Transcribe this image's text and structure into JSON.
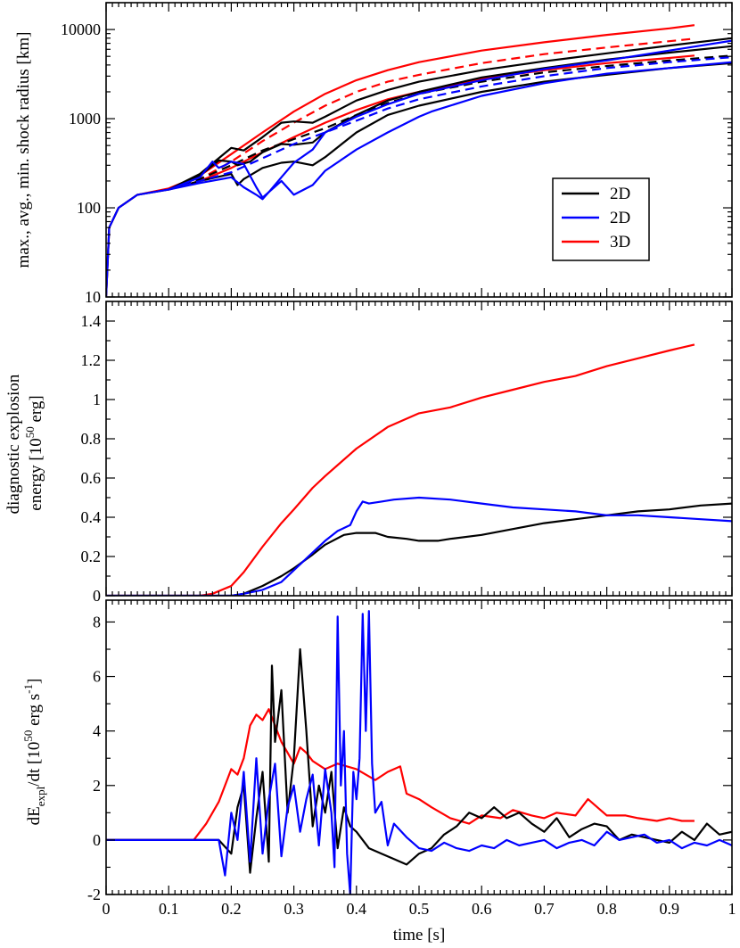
{
  "chart_data": [
    {
      "type": "line",
      "panel": "top",
      "ylabel": "max., avg., min. shock radius [km]",
      "yscale": "log",
      "xlim": [
        0,
        1
      ],
      "ylim": [
        10,
        20000
      ],
      "y_ticks": [
        10,
        100,
        1000,
        10000
      ],
      "y_tick_labels": [
        "10",
        "100",
        "1000",
        "10000"
      ],
      "legend": {
        "position": "right-middle",
        "entries": [
          {
            "label": "2D",
            "color": "#000000"
          },
          {
            "label": "2D",
            "color": "#0000ff"
          },
          {
            "label": "3D",
            "color": "#ff0000"
          }
        ]
      },
      "series": [
        {
          "color": "#ff0000",
          "dash": "solid",
          "x": [
            0,
            0.005,
            0.02,
            0.05,
            0.1,
            0.15,
            0.2,
            0.25,
            0.3,
            0.35,
            0.4,
            0.45,
            0.5,
            0.6,
            0.7,
            0.8,
            0.9,
            0.94
          ],
          "y": [
            10,
            60,
            100,
            140,
            165,
            230,
            400,
            700,
            1200,
            1900,
            2700,
            3500,
            4300,
            5800,
            7200,
            8700,
            10300,
            11200
          ]
        },
        {
          "color": "#ff0000",
          "dash": "dashed",
          "x": [
            0.1,
            0.15,
            0.2,
            0.25,
            0.3,
            0.35,
            0.4,
            0.45,
            0.5,
            0.6,
            0.7,
            0.8,
            0.9,
            0.94
          ],
          "y": [
            160,
            210,
            330,
            560,
            900,
            1400,
            2000,
            2600,
            3100,
            4200,
            5300,
            6300,
            7400,
            7900
          ]
        },
        {
          "color": "#ff0000",
          "dash": "solid",
          "x": [
            0.1,
            0.15,
            0.2,
            0.25,
            0.3,
            0.35,
            0.4,
            0.45,
            0.5,
            0.6,
            0.7,
            0.8,
            0.9,
            0.94
          ],
          "y": [
            160,
            200,
            280,
            420,
            620,
            900,
            1250,
            1650,
            2000,
            2800,
            3500,
            4200,
            4800,
            5100
          ]
        },
        {
          "color": "#000000",
          "dash": "solid",
          "x": [
            0,
            0.005,
            0.02,
            0.05,
            0.1,
            0.15,
            0.18,
            0.2,
            0.22,
            0.25,
            0.28,
            0.3,
            0.33,
            0.35,
            0.4,
            0.45,
            0.5,
            0.6,
            0.7,
            0.8,
            0.9,
            1.0
          ],
          "y": [
            10,
            60,
            100,
            140,
            160,
            240,
            360,
            470,
            440,
            620,
            900,
            930,
            900,
            1050,
            1600,
            2100,
            2600,
            3500,
            4400,
            5400,
            6600,
            8000
          ]
        },
        {
          "color": "#000000",
          "dash": "solid",
          "x": [
            0.1,
            0.15,
            0.18,
            0.2,
            0.21,
            0.23,
            0.25,
            0.28,
            0.3,
            0.33,
            0.35,
            0.4,
            0.45,
            0.5,
            0.6,
            0.7,
            0.8,
            0.9,
            1.0
          ],
          "y": [
            160,
            230,
            340,
            330,
            300,
            330,
            420,
            520,
            510,
            540,
            700,
            1100,
            1600,
            2000,
            2900,
            3700,
            4600,
            5500,
            6500
          ]
        },
        {
          "color": "#000000",
          "dash": "dashed",
          "x": [
            0.1,
            0.15,
            0.2,
            0.25,
            0.3,
            0.35,
            0.4,
            0.45,
            0.5,
            0.6,
            0.7,
            0.8,
            0.9,
            1.0
          ],
          "y": [
            160,
            210,
            300,
            440,
            590,
            780,
            1100,
            1500,
            1900,
            2600,
            3300,
            3900,
            4500,
            5100
          ]
        },
        {
          "color": "#000000",
          "dash": "solid",
          "x": [
            0.1,
            0.15,
            0.2,
            0.21,
            0.22,
            0.25,
            0.28,
            0.3,
            0.33,
            0.35,
            0.4,
            0.45,
            0.5,
            0.6,
            0.7,
            0.8,
            0.9,
            1.0
          ],
          "y": [
            160,
            200,
            240,
            180,
            210,
            280,
            320,
            330,
            300,
            370,
            700,
            1100,
            1400,
            2000,
            2600,
            3100,
            3700,
            4200
          ]
        },
        {
          "color": "#0000ff",
          "dash": "solid",
          "x": [
            0,
            0.005,
            0.02,
            0.05,
            0.1,
            0.15,
            0.17,
            0.18,
            0.19,
            0.2,
            0.22,
            0.24,
            0.25,
            0.26,
            0.28,
            0.3,
            0.33,
            0.35,
            0.4,
            0.45,
            0.5,
            0.6,
            0.7,
            0.8,
            0.9,
            1.0
          ],
          "y": [
            10,
            60,
            100,
            140,
            160,
            220,
            330,
            280,
            300,
            330,
            310,
            170,
            130,
            150,
            220,
            320,
            450,
            700,
            1050,
            1450,
            1900,
            2700,
            3600,
            4500,
            5800,
            7500
          ]
        },
        {
          "color": "#0000ff",
          "dash": "dashed",
          "x": [
            0.1,
            0.15,
            0.2,
            0.25,
            0.3,
            0.35,
            0.4,
            0.45,
            0.5,
            0.6,
            0.7,
            0.8,
            0.9,
            1.0
          ],
          "y": [
            160,
            200,
            250,
            360,
            520,
            700,
            950,
            1300,
            1650,
            2300,
            3000,
            3700,
            4300,
            4900
          ]
        },
        {
          "color": "#0000ff",
          "dash": "solid",
          "x": [
            0.1,
            0.15,
            0.2,
            0.22,
            0.24,
            0.25,
            0.26,
            0.28,
            0.3,
            0.33,
            0.35,
            0.4,
            0.45,
            0.5,
            0.52,
            0.6,
            0.7,
            0.8,
            0.9,
            1.0
          ],
          "y": [
            160,
            190,
            220,
            170,
            140,
            125,
            150,
            200,
            140,
            180,
            260,
            450,
            700,
            1050,
            1200,
            1800,
            2500,
            3200,
            3700,
            4300
          ]
        }
      ]
    },
    {
      "type": "line",
      "panel": "middle",
      "ylabel_line1": "diagnostic explosion",
      "ylabel_line2_prefix": "energy [10",
      "ylabel_line2_sup": "50",
      "ylabel_line2_suffix": " erg]",
      "xlim": [
        0,
        1
      ],
      "ylim": [
        0,
        1.5
      ],
      "y_ticks": [
        0,
        0.2,
        0.4,
        0.6,
        0.8,
        1,
        1.2,
        1.4
      ],
      "y_tick_labels": [
        "0",
        "0.2",
        "0.4",
        "0.6",
        "0.8",
        "1",
        "1.2",
        "1.4"
      ],
      "series": [
        {
          "color": "#ff0000",
          "name": "3D",
          "x": [
            0,
            0.15,
            0.17,
            0.2,
            0.22,
            0.25,
            0.28,
            0.3,
            0.33,
            0.35,
            0.4,
            0.45,
            0.5,
            0.55,
            0.6,
            0.65,
            0.7,
            0.75,
            0.8,
            0.85,
            0.9,
            0.94
          ],
          "y": [
            0,
            0,
            0.01,
            0.05,
            0.12,
            0.25,
            0.37,
            0.44,
            0.55,
            0.61,
            0.75,
            0.86,
            0.93,
            0.96,
            1.01,
            1.05,
            1.09,
            1.12,
            1.17,
            1.21,
            1.25,
            1.28
          ]
        },
        {
          "color": "#000000",
          "name": "2D",
          "x": [
            0,
            0.2,
            0.22,
            0.25,
            0.28,
            0.3,
            0.33,
            0.35,
            0.38,
            0.4,
            0.43,
            0.45,
            0.48,
            0.5,
            0.53,
            0.55,
            0.6,
            0.65,
            0.7,
            0.75,
            0.8,
            0.85,
            0.9,
            0.95,
            1.0
          ],
          "y": [
            0,
            0,
            0.01,
            0.05,
            0.1,
            0.14,
            0.21,
            0.26,
            0.31,
            0.32,
            0.32,
            0.3,
            0.29,
            0.28,
            0.28,
            0.29,
            0.31,
            0.34,
            0.37,
            0.39,
            0.41,
            0.43,
            0.44,
            0.46,
            0.47
          ]
        },
        {
          "color": "#0000ff",
          "name": "2D",
          "x": [
            0,
            0.2,
            0.22,
            0.25,
            0.28,
            0.3,
            0.33,
            0.35,
            0.37,
            0.39,
            0.4,
            0.41,
            0.42,
            0.44,
            0.46,
            0.5,
            0.55,
            0.6,
            0.65,
            0.7,
            0.75,
            0.8,
            0.85,
            0.9,
            0.95,
            1.0
          ],
          "y": [
            0,
            0,
            0.01,
            0.03,
            0.07,
            0.13,
            0.22,
            0.28,
            0.33,
            0.36,
            0.43,
            0.48,
            0.47,
            0.48,
            0.49,
            0.5,
            0.49,
            0.47,
            0.45,
            0.44,
            0.43,
            0.41,
            0.41,
            0.4,
            0.39,
            0.38
          ]
        }
      ]
    },
    {
      "type": "line",
      "panel": "bottom",
      "ylabel_prefix": "dE",
      "ylabel_sub": "expl",
      "ylabel_mid": "/dt  [10",
      "ylabel_sup1": "50",
      "ylabel_mid2": " erg s",
      "ylabel_sup2": "-1",
      "ylabel_suffix": "]",
      "xlabel": "time [s]",
      "xlim": [
        0,
        1
      ],
      "ylim": [
        -2,
        8.8
      ],
      "x_ticks": [
        0,
        0.1,
        0.2,
        0.3,
        0.4,
        0.5,
        0.6,
        0.7,
        0.8,
        0.9,
        1
      ],
      "x_tick_labels": [
        "0",
        "0.1",
        "0.2",
        "0.3",
        "0.4",
        "0.5",
        "0.6",
        "0.7",
        "0.8",
        "0.9",
        "1"
      ],
      "y_ticks": [
        -2,
        0,
        2,
        4,
        6,
        8
      ],
      "y_tick_labels": [
        "-2",
        "0",
        "2",
        "4",
        "6",
        "8"
      ],
      "series": [
        {
          "color": "#ff0000",
          "name": "3D",
          "x": [
            0,
            0.14,
            0.16,
            0.18,
            0.2,
            0.21,
            0.22,
            0.23,
            0.24,
            0.25,
            0.26,
            0.27,
            0.28,
            0.29,
            0.3,
            0.31,
            0.32,
            0.33,
            0.35,
            0.37,
            0.4,
            0.43,
            0.45,
            0.47,
            0.48,
            0.5,
            0.52,
            0.55,
            0.58,
            0.6,
            0.63,
            0.65,
            0.68,
            0.7,
            0.72,
            0.75,
            0.77,
            0.8,
            0.83,
            0.85,
            0.88,
            0.9,
            0.92,
            0.94
          ],
          "y": [
            0,
            0,
            0.6,
            1.4,
            2.6,
            2.4,
            3.0,
            4.2,
            4.6,
            4.4,
            4.8,
            4.2,
            3.6,
            3.2,
            2.8,
            3.4,
            3.2,
            2.9,
            2.6,
            2.8,
            2.6,
            2.2,
            2.5,
            2.7,
            1.7,
            1.5,
            1.2,
            0.8,
            0.6,
            0.9,
            0.8,
            1.1,
            0.9,
            0.8,
            1.0,
            0.9,
            1.5,
            0.9,
            0.9,
            0.8,
            0.7,
            0.8,
            0.7,
            0.7
          ]
        },
        {
          "color": "#000000",
          "name": "2D",
          "x": [
            0,
            0.18,
            0.2,
            0.21,
            0.22,
            0.23,
            0.24,
            0.25,
            0.26,
            0.265,
            0.27,
            0.28,
            0.29,
            0.3,
            0.31,
            0.32,
            0.33,
            0.34,
            0.35,
            0.36,
            0.37,
            0.38,
            0.39,
            0.4,
            0.42,
            0.44,
            0.46,
            0.48,
            0.5,
            0.52,
            0.54,
            0.56,
            0.58,
            0.6,
            0.62,
            0.64,
            0.66,
            0.68,
            0.7,
            0.72,
            0.74,
            0.76,
            0.78,
            0.8,
            0.82,
            0.84,
            0.86,
            0.88,
            0.9,
            0.92,
            0.94,
            0.96,
            0.98,
            1.0
          ],
          "y": [
            0,
            0,
            -0.5,
            1.2,
            2.0,
            -1.2,
            0.8,
            2.5,
            -0.8,
            6.4,
            3.6,
            5.5,
            1.0,
            3.0,
            7.0,
            4.0,
            0.5,
            2.0,
            1.0,
            2.5,
            -0.3,
            1.2,
            0.5,
            0.3,
            -0.3,
            -0.5,
            -0.7,
            -0.9,
            -0.5,
            -0.3,
            0.2,
            0.5,
            1.0,
            0.8,
            1.2,
            0.8,
            1.0,
            0.6,
            0.3,
            0.8,
            0.1,
            0.4,
            0.6,
            0.5,
            0.0,
            0.2,
            0.1,
            0.0,
            -0.1,
            0.3,
            0.0,
            0.6,
            0.2,
            0.3
          ]
        },
        {
          "color": "#0000ff",
          "name": "2D",
          "x": [
            0,
            0.18,
            0.19,
            0.2,
            0.21,
            0.22,
            0.23,
            0.24,
            0.25,
            0.26,
            0.27,
            0.28,
            0.29,
            0.3,
            0.31,
            0.32,
            0.33,
            0.34,
            0.35,
            0.36,
            0.365,
            0.37,
            0.375,
            0.38,
            0.385,
            0.39,
            0.395,
            0.4,
            0.405,
            0.41,
            0.415,
            0.42,
            0.425,
            0.43,
            0.44,
            0.45,
            0.46,
            0.48,
            0.5,
            0.52,
            0.54,
            0.56,
            0.58,
            0.6,
            0.62,
            0.64,
            0.66,
            0.68,
            0.7,
            0.72,
            0.74,
            0.76,
            0.78,
            0.8,
            0.82,
            0.84,
            0.86,
            0.88,
            0.9,
            0.92,
            0.94,
            0.96,
            0.98,
            1.0
          ],
          "y": [
            0,
            0,
            -1.3,
            1.0,
            0.0,
            2.5,
            -0.8,
            3.0,
            -0.5,
            1.5,
            2.8,
            -0.6,
            1.2,
            2.0,
            0.3,
            1.5,
            2.4,
            -0.2,
            2.6,
            1.0,
            -1.0,
            8.2,
            2.0,
            4.0,
            -0.5,
            -2.0,
            2.5,
            1.5,
            3.0,
            8.3,
            4.0,
            8.4,
            2.8,
            1.0,
            1.4,
            -0.2,
            0.6,
            0.1,
            -0.3,
            -0.4,
            -0.1,
            -0.3,
            -0.4,
            -0.2,
            -0.3,
            0.0,
            -0.2,
            -0.1,
            0.0,
            -0.3,
            -0.1,
            0.0,
            -0.2,
            0.3,
            0.0,
            0.1,
            0.2,
            -0.1,
            0.0,
            -0.3,
            -0.1,
            -0.2,
            0.0,
            -0.2
          ]
        }
      ]
    }
  ]
}
